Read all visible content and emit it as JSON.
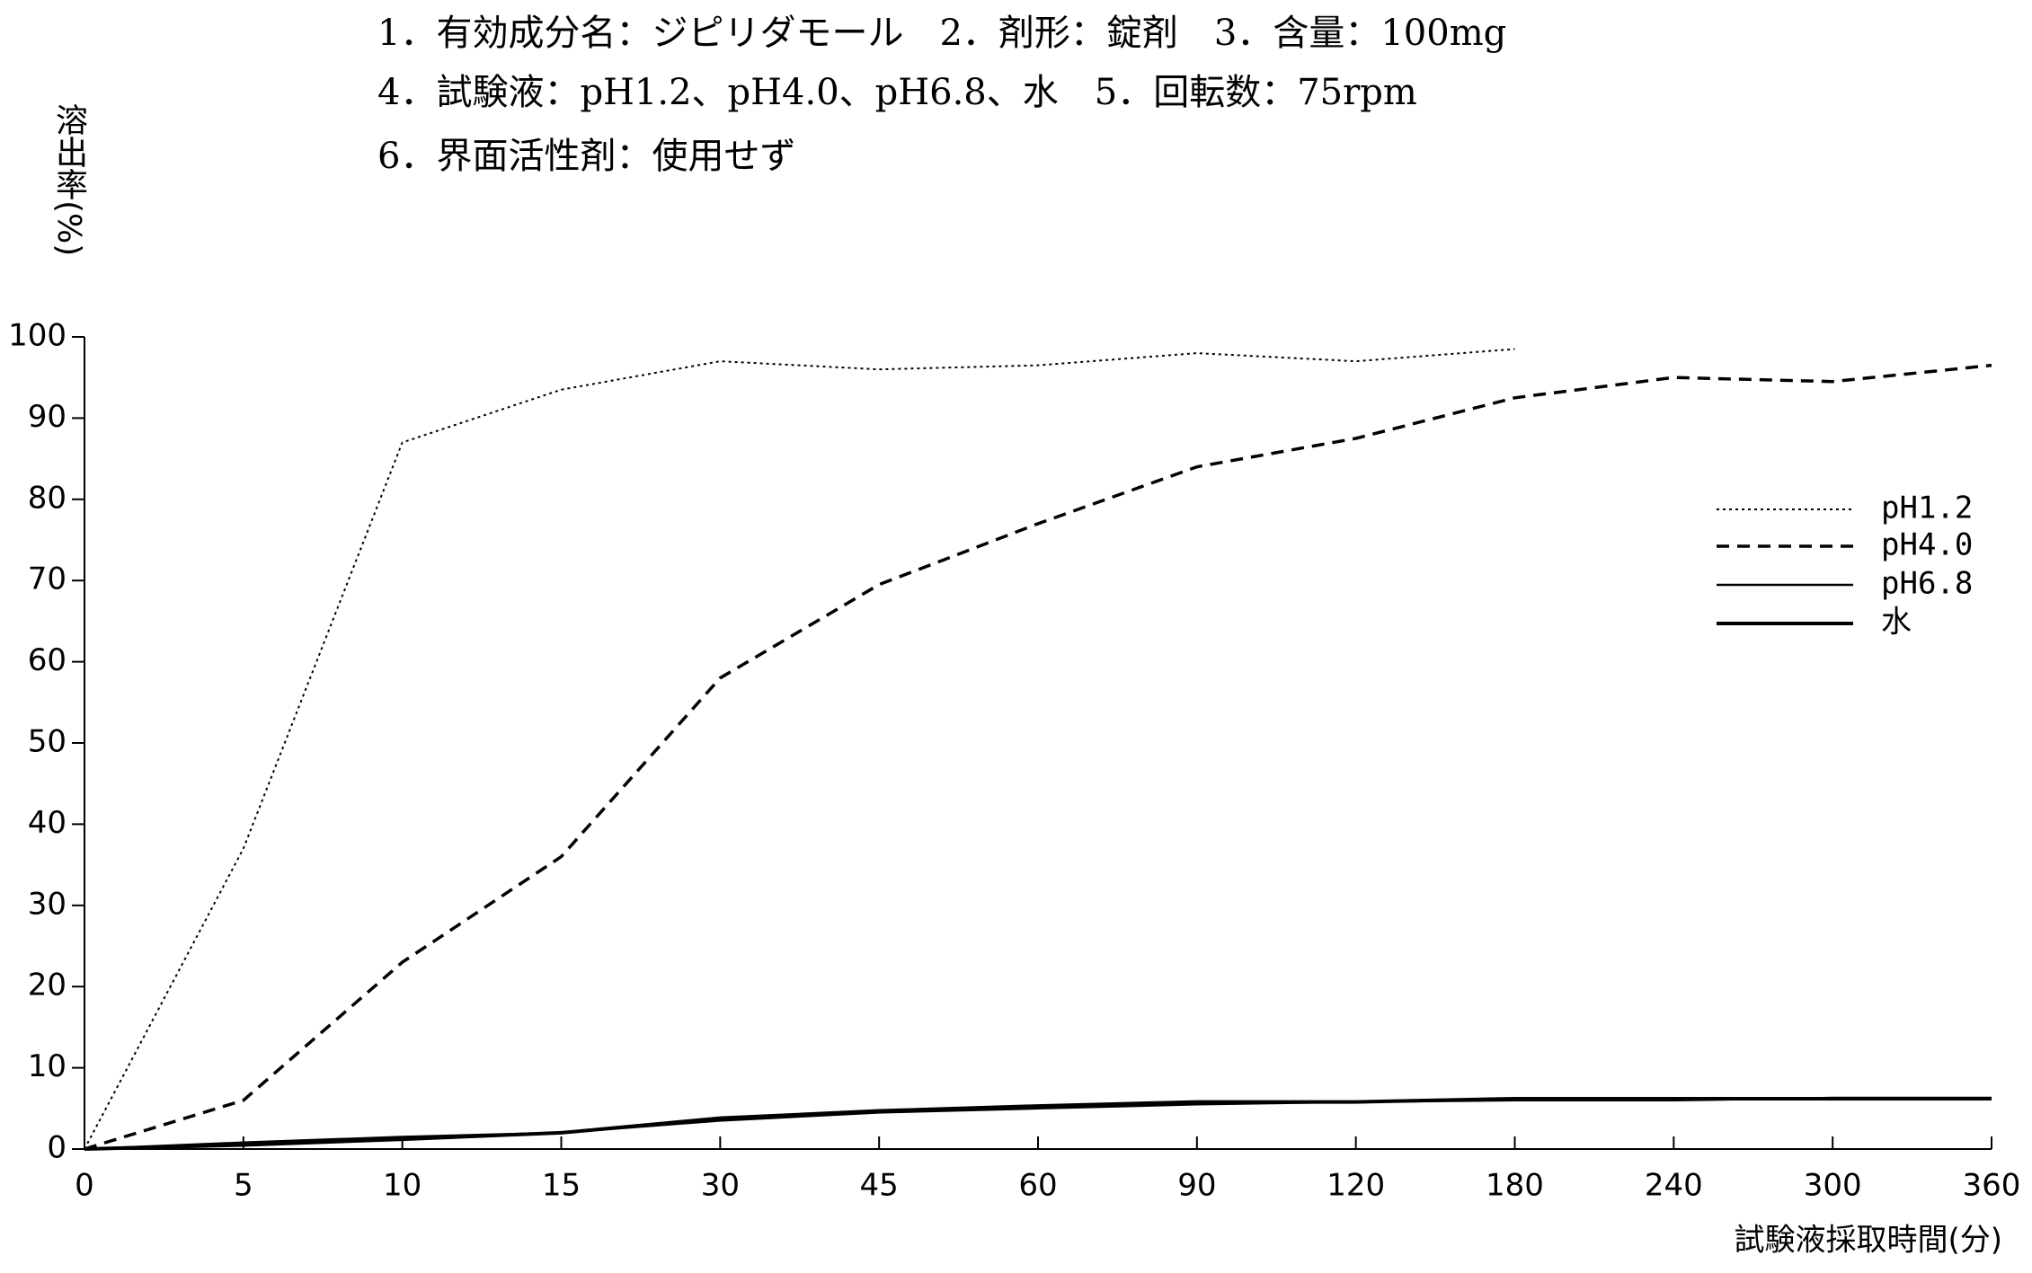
{
  "chart_data": {
    "type": "line",
    "title_lines": [
      "1．有効成分名：ジピリダモール　2．剤形：錠剤　3．含量：100mg",
      "4．試験液：pH1.2、pH4.0、pH6.8、水　5．回転数：75rpm",
      "6．界面活性剤：使用せず"
    ],
    "y_label": "溶出率(%)",
    "x_label": "試験液採取時間(分)",
    "categories": [
      "0",
      "5",
      "10",
      "15",
      "30",
      "45",
      "60",
      "90",
      "120",
      "180",
      "240",
      "300",
      "360"
    ],
    "series": [
      {
        "name": "pH1.2",
        "color": "#000000",
        "line_style": "dotted",
        "values": [
          0,
          37,
          87,
          93.5,
          97,
          96,
          96.5,
          98,
          97,
          98.5,
          null,
          null,
          null
        ]
      },
      {
        "name": "pH4.0",
        "color": "#000000",
        "line_style": "dashed",
        "values": [
          0,
          6,
          23,
          36,
          58,
          69.5,
          77,
          84,
          87.5,
          92.5,
          95,
          94.5,
          96.5
        ]
      },
      {
        "name": "pH6.8",
        "color": "#000000",
        "line_style": "solid",
        "values": [
          0,
          0.8,
          1.5,
          2,
          3.5,
          4.5,
          5,
          5.5,
          5.8,
          6,
          6,
          6.3,
          6.3
        ]
      },
      {
        "name": "水",
        "color": "#000000",
        "line_style": "thick",
        "values": [
          0,
          0.5,
          1.2,
          2,
          3.8,
          4.7,
          5.3,
          5.8,
          5.8,
          6.2,
          6.2,
          6.2,
          6.2
        ]
      }
    ],
    "ylim": [
      0,
      100
    ],
    "yticks": [
      0,
      10,
      20,
      30,
      40,
      50,
      60,
      70,
      80,
      90,
      100
    ],
    "grid": false,
    "legend": "right"
  }
}
